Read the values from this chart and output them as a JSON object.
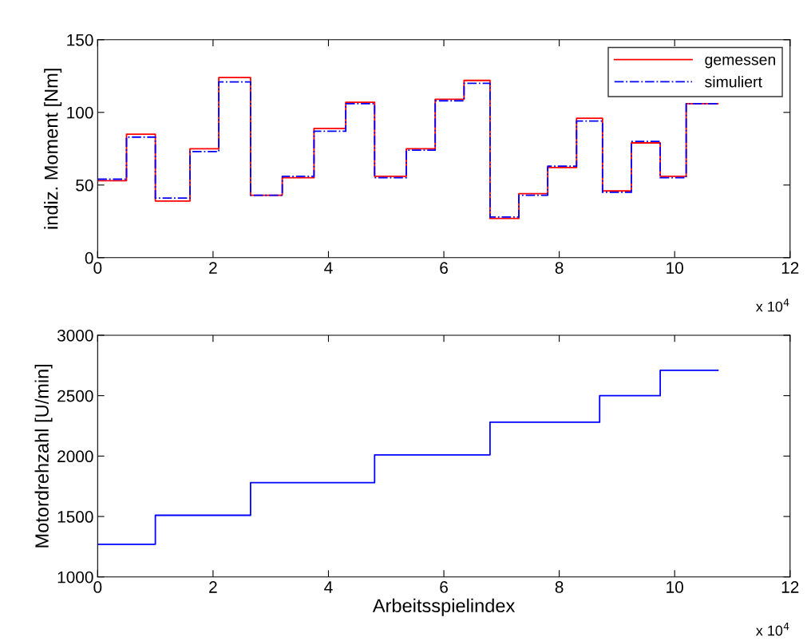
{
  "chart_data": [
    {
      "type": "line",
      "ylabel": "indiz. Moment [Nm]",
      "annotations": [
        "x 10$^{4}$"
      ],
      "xlim": [
        0,
        12
      ],
      "xticks": [
        0,
        2,
        4,
        6,
        8,
        10,
        12
      ],
      "ylim": [
        0,
        150
      ],
      "yticks": [
        0,
        50,
        100,
        150
      ],
      "legend": "top right",
      "grid": false,
      "series": [
        {
          "name": "gemessen",
          "color": "#ff0000",
          "line_style": "solid",
          "x": [
            0,
            0.5,
            0.5,
            1,
            1,
            1.6,
            1.6,
            2.1,
            2.1,
            2.65,
            2.65,
            3.2,
            3.2,
            3.75,
            3.75,
            4.3,
            4.3,
            4.8,
            4.8,
            5.35,
            5.35,
            5.85,
            5.85,
            6.35,
            6.35,
            6.8,
            6.8,
            7.3,
            7.3,
            7.8,
            7.8,
            8.3,
            8.3,
            8.75,
            8.75,
            9.25,
            9.25,
            9.75,
            9.75,
            10.2,
            10.2,
            10.75
          ],
          "values": [
            53,
            53,
            85,
            85,
            39,
            39,
            75,
            75,
            124,
            124,
            43,
            43,
            55,
            55,
            89,
            89,
            107,
            107,
            56,
            56,
            75,
            75,
            109,
            109,
            122,
            122,
            27,
            27,
            44,
            44,
            62,
            62,
            96,
            96,
            46,
            46,
            79,
            79,
            56,
            56,
            106,
            106
          ]
        },
        {
          "name": "simuliert",
          "color": "#0000ff",
          "line_style": "dashdot",
          "x": [
            0,
            0.5,
            0.5,
            1,
            1,
            1.6,
            1.6,
            2.1,
            2.1,
            2.65,
            2.65,
            3.2,
            3.2,
            3.75,
            3.75,
            4.3,
            4.3,
            4.8,
            4.8,
            5.35,
            5.35,
            5.85,
            5.85,
            6.35,
            6.35,
            6.8,
            6.8,
            7.3,
            7.3,
            7.8,
            7.8,
            8.3,
            8.3,
            8.75,
            8.75,
            9.25,
            9.25,
            9.75,
            9.75,
            10.2,
            10.2,
            10.75
          ],
          "values": [
            54,
            54,
            83,
            83,
            41,
            41,
            73,
            73,
            121,
            121,
            43,
            43,
            56,
            56,
            87,
            87,
            106,
            106,
            55,
            55,
            74,
            74,
            108,
            108,
            120,
            120,
            28,
            28,
            43,
            43,
            63,
            63,
            94,
            94,
            45,
            45,
            80,
            80,
            55,
            55,
            106,
            106
          ]
        }
      ]
    },
    {
      "type": "line",
      "xlabel": "Arbeitsspielindex",
      "ylabel": "Motordrehzahl [U/min]",
      "annotations": [
        "x 10$^{4}$"
      ],
      "xlim": [
        0,
        12
      ],
      "xticks": [
        0,
        2,
        4,
        6,
        8,
        10,
        12
      ],
      "ylim": [
        1000,
        3000
      ],
      "yticks": [
        1000,
        1500,
        2000,
        2500,
        3000
      ],
      "legend": false,
      "grid": false,
      "series": [
        {
          "color": "#0000ff",
          "line_style": "solid",
          "x": [
            0,
            1,
            1,
            2.65,
            2.65,
            4.8,
            4.8,
            6.8,
            6.8,
            8.7,
            8.7,
            9.75,
            9.75,
            10.75
          ],
          "values": [
            1270,
            1270,
            1510,
            1510,
            1780,
            1780,
            2010,
            2010,
            2280,
            2280,
            2500,
            2500,
            2710,
            2710
          ]
        }
      ]
    }
  ]
}
